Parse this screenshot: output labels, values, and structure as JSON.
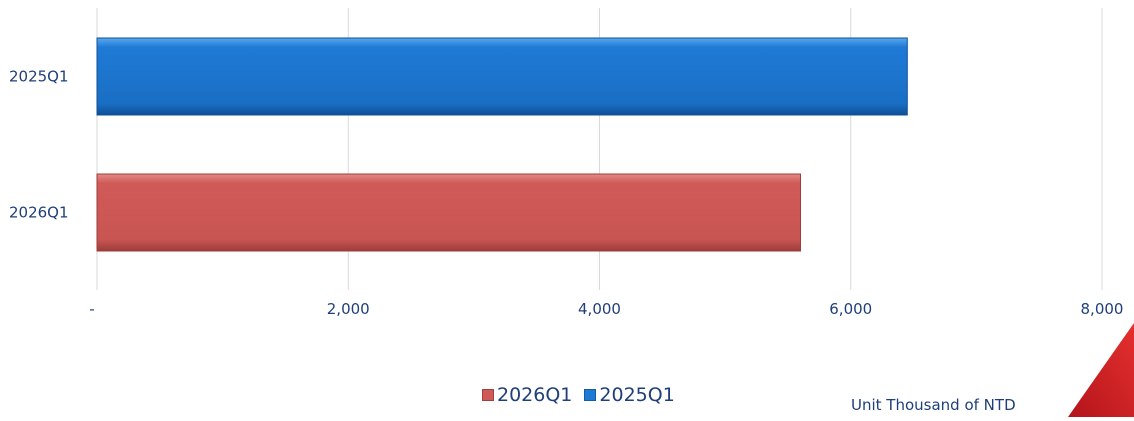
{
  "chart_data": {
    "type": "bar",
    "orientation": "horizontal",
    "categories": [
      "2025Q1",
      "2026Q1"
    ],
    "series": [
      {
        "name": "2025Q1",
        "category": "2025Q1",
        "value": 6450,
        "color": "#1f7ad6"
      },
      {
        "name": "2026Q1",
        "category": "2026Q1",
        "value": 5600,
        "color": "#d05a58"
      }
    ],
    "xlim": [
      0,
      8000
    ],
    "x_ticks": [
      0,
      2000,
      4000,
      6000,
      8000
    ],
    "x_tick_labels": [
      "-",
      "2,000",
      "4,000",
      "6,000",
      "8,000"
    ],
    "grid": true,
    "legend": {
      "placement": "bottom",
      "items": [
        {
          "label": "2026Q1",
          "color": "#d05a58"
        },
        {
          "label": "2025Q1",
          "color": "#1f7ad6"
        }
      ]
    },
    "unit_note": "Unit Thousand of NTD"
  },
  "accent_color": "#d92b2b"
}
